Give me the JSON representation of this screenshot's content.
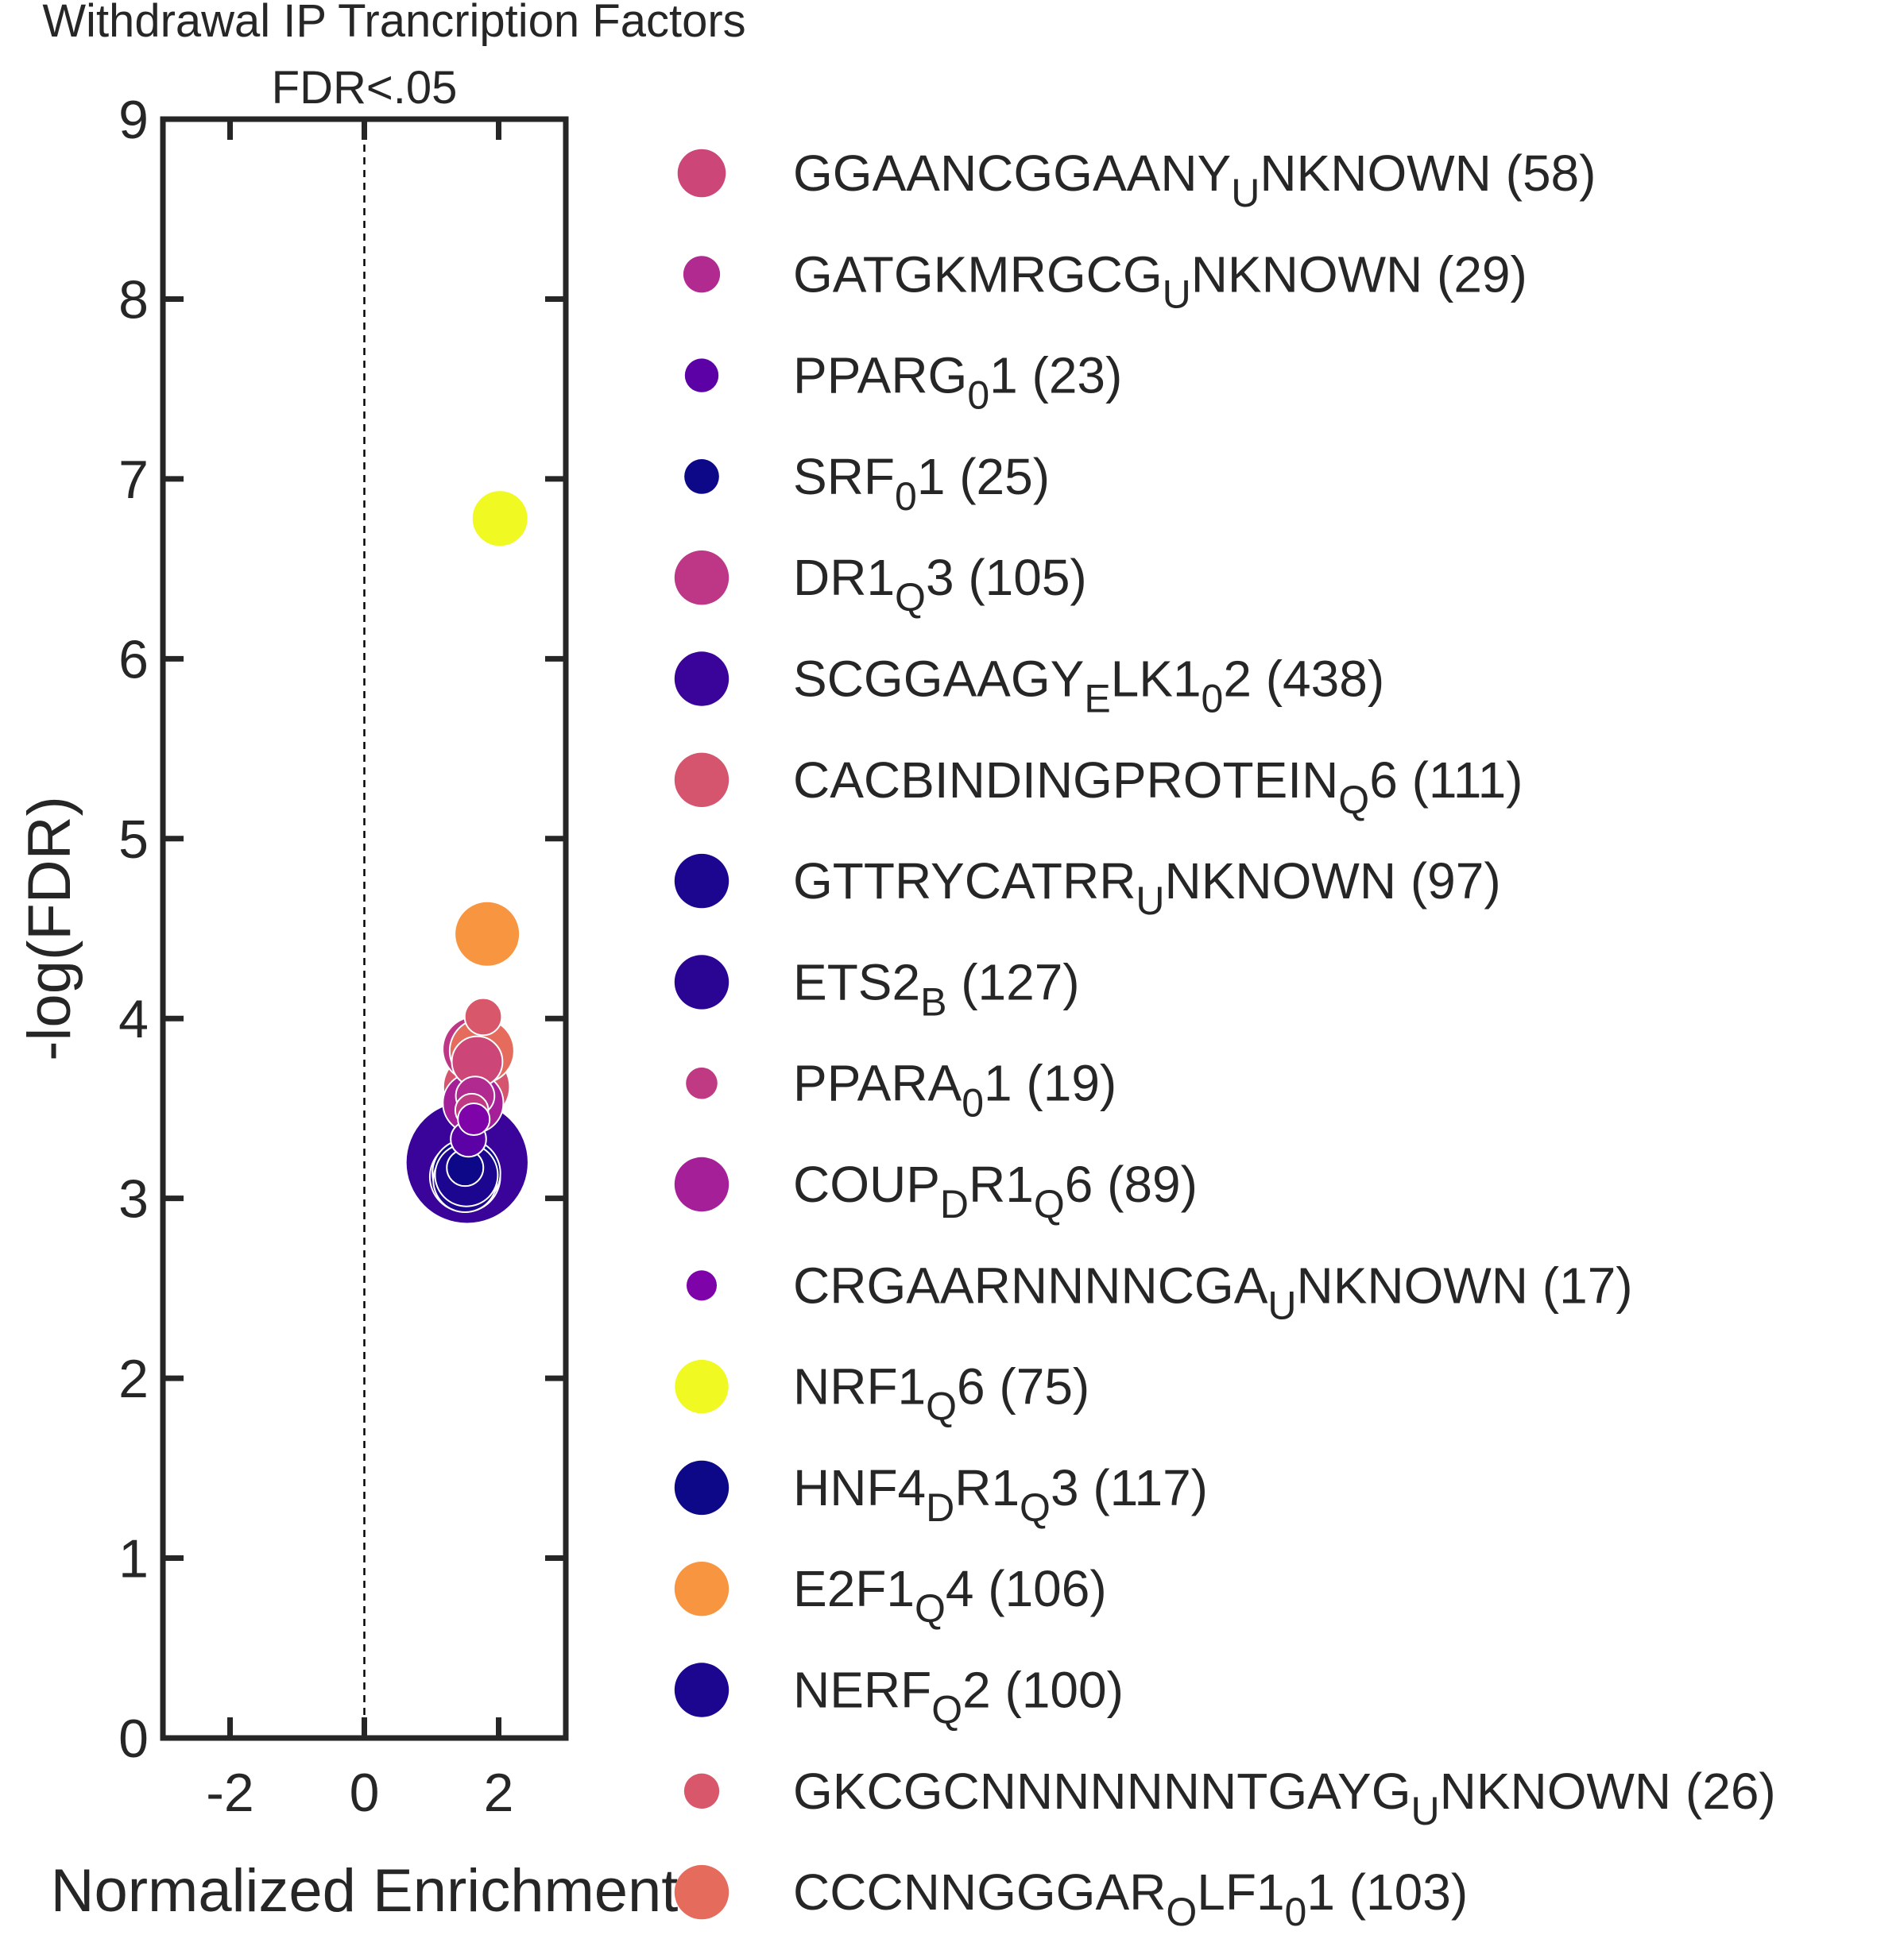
{
  "chart_data": {
    "type": "scatter",
    "title_lines": [
      "Withdrawal IP Trancription Factors",
      "FDR<.05"
    ],
    "xlabel": "Normalized Enrichment",
    "ylabel": "-log(FDR)",
    "xlim": [
      -3,
      3
    ],
    "ylim": [
      0,
      9
    ],
    "xticks": [
      -2,
      0,
      2
    ],
    "yticks": [
      0,
      1,
      2,
      3,
      4,
      5,
      6,
      7,
      8,
      9
    ],
    "xtick_labels": [
      "-2",
      "0",
      "2"
    ],
    "ytick_labels": [
      "0",
      "1",
      "2",
      "3",
      "4",
      "5",
      "6",
      "7",
      "8",
      "9"
    ],
    "reference_line_x": 0,
    "grid": false,
    "legend_position": "right",
    "point_size_meaning": "gene set size",
    "points": [
      {
        "label": "GGAANCGGAANY_UNKNOWN (58)",
        "parts": [
          [
            "GGAANCGGAANY",
            ""
          ],
          [
            "U",
            "sub"
          ],
          [
            "NKNOWN (58)",
            ""
          ]
        ],
        "x": 1.68,
        "y": 3.76,
        "size": 58,
        "color": "#cc4778"
      },
      {
        "label": "GATGKMRGCG_UNKNOWN (29)",
        "parts": [
          [
            "GATGKMRGCG",
            ""
          ],
          [
            "U",
            "sub"
          ],
          [
            "NKNOWN (29)",
            ""
          ]
        ],
        "x": 1.65,
        "y": 3.57,
        "size": 29,
        "color": "#b12a90"
      },
      {
        "label": "PPARG_01 (23)",
        "parts": [
          [
            "PPARG",
            ""
          ],
          [
            "0",
            "sub"
          ],
          [
            "1 (23)",
            ""
          ]
        ],
        "x": 1.55,
        "y": 3.33,
        "size": 23,
        "color": "#5c01a6"
      },
      {
        "label": "SRF_01 (25)",
        "parts": [
          [
            "SRF",
            ""
          ],
          [
            "0",
            "sub"
          ],
          [
            "1 (25)",
            ""
          ]
        ],
        "x": 1.5,
        "y": 3.17,
        "size": 25,
        "color": "#0d0887"
      },
      {
        "label": "DR1_Q3 (105)",
        "parts": [
          [
            "DR1",
            ""
          ],
          [
            "Q",
            "sub"
          ],
          [
            "3 (105)",
            ""
          ]
        ],
        "x": 1.65,
        "y": 3.83,
        "size": 105,
        "color": "#bd3786"
      },
      {
        "label": "SCGGAAGY_ELK1_02 (438)",
        "parts": [
          [
            "SCGGAAGY",
            ""
          ],
          [
            "E",
            "sub"
          ],
          [
            "LK1",
            ""
          ],
          [
            "0",
            "sub"
          ],
          [
            "2 (438)",
            ""
          ]
        ],
        "x": 1.53,
        "y": 3.2,
        "size": 438,
        "color": "#3a049a"
      },
      {
        "label": "CACBINDINGPROTEIN_Q6 (111)",
        "parts": [
          [
            "CACBINDINGPROTEIN",
            ""
          ],
          [
            "Q",
            "sub"
          ],
          [
            "6 (111)",
            ""
          ]
        ],
        "x": 1.67,
        "y": 3.62,
        "size": 111,
        "color": "#d5546e"
      },
      {
        "label": "GTTRYCATRR_UNKNOWN (97)",
        "parts": [
          [
            "GTTRYCATRR",
            ""
          ],
          [
            "U",
            "sub"
          ],
          [
            "NKNOWN (97)",
            ""
          ]
        ],
        "x": 1.52,
        "y": 3.13,
        "size": 97,
        "color": "#1c068f"
      },
      {
        "label": "ETS2_B (127)",
        "parts": [
          [
            "ETS2",
            ""
          ],
          [
            "B",
            "sub"
          ],
          [
            " (127)",
            ""
          ]
        ],
        "x": 1.5,
        "y": 3.12,
        "size": 127,
        "color": "#2a0593"
      },
      {
        "label": "PPARA_01 (19)",
        "parts": [
          [
            "PPARA",
            ""
          ],
          [
            "0",
            "sub"
          ],
          [
            "1 (19)",
            ""
          ]
        ],
        "x": 1.6,
        "y": 3.49,
        "size": 19,
        "color": "#c03a83"
      },
      {
        "label": "COUP_DR1_Q6 (89)",
        "parts": [
          [
            "COUP",
            ""
          ],
          [
            "D",
            "sub"
          ],
          [
            "R1",
            ""
          ],
          [
            "Q",
            "sub"
          ],
          [
            "6 (89)",
            ""
          ]
        ],
        "x": 1.62,
        "y": 3.53,
        "size": 89,
        "color": "#a51f99"
      },
      {
        "label": "CRGAARNNNNCGA_UNKNOWN (17)",
        "parts": [
          [
            "CRGAARNNNNCGA",
            ""
          ],
          [
            "U",
            "sub"
          ],
          [
            "NKNOWN (17)",
            ""
          ]
        ],
        "x": 1.63,
        "y": 3.44,
        "size": 17,
        "color": "#7e03a8"
      },
      {
        "label": "NRF1_Q6 (75)",
        "parts": [
          [
            "NRF1",
            ""
          ],
          [
            "Q",
            "sub"
          ],
          [
            "6 (75)",
            ""
          ]
        ],
        "x": 2.02,
        "y": 6.78,
        "size": 75,
        "color": "#f0f921"
      },
      {
        "label": "HNF4_DR1_Q3 (117)",
        "parts": [
          [
            "HNF4",
            ""
          ],
          [
            "D",
            "sub"
          ],
          [
            "R1",
            ""
          ],
          [
            "Q",
            "sub"
          ],
          [
            "3 (117)",
            ""
          ]
        ],
        "x": 1.52,
        "y": 3.14,
        "size": 117,
        "color": "#0d0887"
      },
      {
        "label": "E2F1_Q4 (106)",
        "parts": [
          [
            "E2F1",
            ""
          ],
          [
            "Q",
            "sub"
          ],
          [
            "4 (106)",
            ""
          ]
        ],
        "x": 1.83,
        "y": 4.47,
        "size": 106,
        "color": "#f89540"
      },
      {
        "label": "NERF_Q2 (100)",
        "parts": [
          [
            "NERF",
            ""
          ],
          [
            "Q",
            "sub"
          ],
          [
            "2 (100)",
            ""
          ]
        ],
        "x": 1.5,
        "y": 3.1,
        "size": 100,
        "color": "#1c068f"
      },
      {
        "label": "GKCGCNNNNNNNTGAYG_UNKNOWN (26)",
        "parts": [
          [
            "GKCGCNNNNNNNTGAYG",
            ""
          ],
          [
            "U",
            "sub"
          ],
          [
            "NKNOWN (26)",
            ""
          ]
        ],
        "x": 1.77,
        "y": 4.01,
        "size": 26,
        "color": "#d8576b"
      },
      {
        "label": "CCCNNGGGAR_OLF1_01 (103)",
        "parts": [
          [
            "CCCNNGGGAR",
            ""
          ],
          [
            "O",
            "sub"
          ],
          [
            "LF1",
            ""
          ],
          [
            "0",
            "sub"
          ],
          [
            "1 (103)",
            ""
          ]
        ],
        "x": 1.75,
        "y": 3.82,
        "size": 103,
        "color": "#e56b5d"
      }
    ]
  }
}
